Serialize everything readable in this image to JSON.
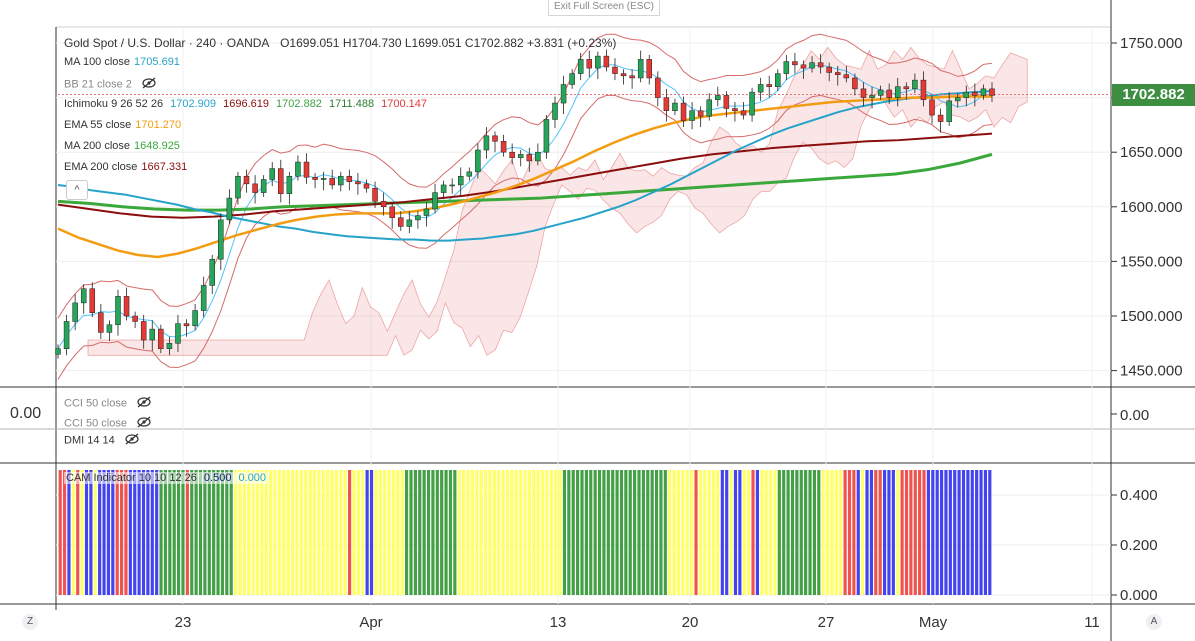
{
  "toolbar": {
    "exit_fullscreen": "Exit Full Screen (ESC)"
  },
  "header": {
    "title": "Gold Spot / U.S. Dollar · 240 · OANDA",
    "ohlc": "O1699.051  H1704.730  L1699.051  C1702.882  +3.831 (+0.23%)"
  },
  "price_badge": "1702.882",
  "left_axis_zero": "0.00",
  "indicators": {
    "ma100": {
      "label": "MA 100 close",
      "value": "1705.691",
      "color": "#26a3c9"
    },
    "bb": {
      "label": "BB 21 close 2"
    },
    "ichimoku": {
      "label": "Ichimoku 9 26 52 26",
      "v1": "1702.909",
      "v2": "1696.619",
      "v3": "1702.882",
      "v4": "1711.488",
      "v5": "1700.147"
    },
    "ema55": {
      "label": "EMA 55 close",
      "value": "1701.270",
      "color": "#f39c12"
    },
    "ma200": {
      "label": "MA 200 close",
      "value": "1648.925",
      "color": "#3ba83b"
    },
    "ema200": {
      "label": "EMA 200 close",
      "value": "1667.331",
      "color": "#8b0e0e"
    },
    "cci1": {
      "label": "CCI 50 close"
    },
    "cci2": {
      "label": "CCI 50 close"
    },
    "dmi": {
      "label": "DMI 14 14"
    },
    "cam": {
      "label": "CAM Indicator 10 10 12 26",
      "v1": "0.500",
      "v2": "0.000"
    }
  },
  "buttons": {
    "collapse": "^",
    "left_corner": "Z",
    "right_corner": "A"
  },
  "chart_data": {
    "type": "line",
    "title": "Gold Spot / U.S. Dollar · 240 · OANDA",
    "main_price_axis": {
      "ticks": [
        "1750.000",
        "1700.000",
        "1650.000",
        "1600.000",
        "1550.000",
        "1500.000",
        "1450.000"
      ],
      "ylim": [
        1440,
        1765
      ]
    },
    "cci_axis": {
      "ticks": [
        "0.00"
      ]
    },
    "cam_axis": {
      "ticks": [
        "0.400",
        "0.200",
        "0.000"
      ],
      "ylim": [
        0,
        0.5
      ]
    },
    "x_ticks": [
      "23",
      "Apr",
      "13",
      "20",
      "27",
      "May",
      "11"
    ],
    "ohlc_last": {
      "open": 1699.051,
      "high": 1704.73,
      "low": 1699.051,
      "close": 1702.882,
      "change": 3.831,
      "change_pct": 0.23
    },
    "close_series": [
      1470,
      1495,
      1512,
      1525,
      1503,
      1485,
      1492,
      1518,
      1500,
      1495,
      1478,
      1488,
      1470,
      1475,
      1493,
      1491,
      1505,
      1528,
      1552,
      1588,
      1608,
      1628,
      1621,
      1613,
      1625,
      1635,
      1612,
      1628,
      1641,
      1627,
      1625,
      1626,
      1620,
      1628,
      1623,
      1621,
      1617,
      1605,
      1600,
      1590,
      1582,
      1588,
      1592,
      1598,
      1613,
      1620,
      1620,
      1628,
      1632,
      1652,
      1665,
      1660,
      1650,
      1645,
      1648,
      1642,
      1650,
      1680,
      1695,
      1712,
      1722,
      1735,
      1727,
      1738,
      1728,
      1722,
      1720,
      1718,
      1735,
      1718,
      1700,
      1688,
      1695,
      1679,
      1688,
      1683,
      1698,
      1702,
      1690,
      1688,
      1684,
      1705,
      1712,
      1710,
      1722,
      1733,
      1730,
      1727,
      1732,
      1728,
      1723,
      1721,
      1718,
      1708,
      1700,
      1702,
      1707,
      1700,
      1710,
      1708,
      1716,
      1698,
      1684,
      1678,
      1697,
      1700,
      1705,
      1702,
      1708,
      1702
    ],
    "ma100": [
      1620,
      1618,
      1615,
      1613,
      1611,
      1608,
      1605,
      1602,
      1598,
      1595,
      1591,
      1588,
      1585,
      1582,
      1580,
      1577,
      1575,
      1573,
      1572,
      1571,
      1570,
      1570,
      1569,
      1569,
      1570,
      1571,
      1573,
      1575,
      1578,
      1582,
      1586,
      1590,
      1595,
      1600,
      1606,
      1613,
      1620,
      1628,
      1636,
      1644,
      1652,
      1659,
      1666,
      1672,
      1677,
      1682,
      1687,
      1691,
      1694,
      1697,
      1699,
      1701,
      1703,
      1704,
      1705,
      1706
    ],
    "ema55": [
      1580,
      1572,
      1566,
      1560,
      1556,
      1554,
      1557,
      1562,
      1568,
      1574,
      1579,
      1584,
      1588,
      1591,
      1593,
      1594,
      1594,
      1594,
      1596,
      1599,
      1603,
      1608,
      1613,
      1619,
      1626,
      1634,
      1642,
      1651,
      1659,
      1666,
      1672,
      1677,
      1681,
      1684,
      1686,
      1688,
      1690,
      1692,
      1694,
      1696,
      1697,
      1698,
      1699,
      1700,
      1700,
      1701,
      1701,
      1701
    ],
    "ma200": [
      1605,
      1603,
      1600,
      1598,
      1597,
      1597,
      1598,
      1600,
      1601,
      1602,
      1603,
      1604,
      1605,
      1606,
      1607,
      1608,
      1610,
      1612,
      1614,
      1616,
      1618,
      1620,
      1622,
      1624,
      1626,
      1628,
      1630,
      1634,
      1640,
      1648
    ],
    "ema200": [
      1602,
      1598,
      1594,
      1591,
      1590,
      1591,
      1593,
      1596,
      1598,
      1600,
      1602,
      1604,
      1607,
      1610,
      1614,
      1619,
      1624,
      1629,
      1634,
      1639,
      1644,
      1648,
      1651,
      1654,
      1656,
      1658,
      1660,
      1661,
      1663,
      1665,
      1667
    ],
    "cam_colors": [
      "#ef5350",
      "#4444ee",
      "#ffff66",
      "#43a047"
    ],
    "cam_sequence": "RRBYRYBBYBBBBRRRBBBBBBBGGGGGGRGGGGGGGGGGYYYYYYYYYYYYYYYYYYYYYYYYYYRYYYBBYYYYYYYGGGGGGGGGGGGYYYYYYYYYYYYYYYYYYYYYYYYGGGGGGGGGGGGGGGGGGGGGGGGYYYYYYRYYYYYBBYBBYYRBYYYYGGGGGGGGGGYYYYYRRRBYBBRRBBBYRRRRRRBBBBBBBBBBBBBBB",
    "cam_bar_value": 0.5
  }
}
